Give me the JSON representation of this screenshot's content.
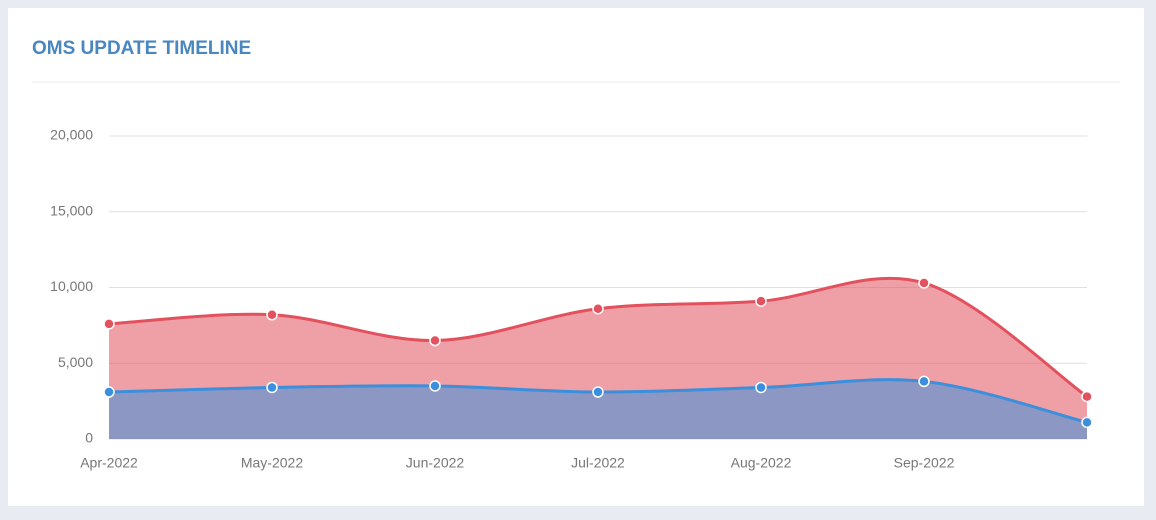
{
  "chart_data": {
    "type": "area",
    "title": "OMS UPDATE TIMELINE",
    "categories": [
      "Apr-2022",
      "May-2022",
      "Jun-2022",
      "Jul-2022",
      "Aug-2022",
      "Sep-2022",
      null
    ],
    "series": [
      {
        "color": "#e2515d",
        "values": [
          7600,
          8200,
          6500,
          8600,
          9100,
          10300,
          2800
        ]
      },
      {
        "color": "#3b8fdc",
        "values": [
          3100,
          3400,
          3500,
          3100,
          3400,
          3800,
          1100
        ]
      }
    ],
    "ylim": [
      0,
      20000
    ],
    "yticks": [
      0,
      {
        "value": 5000,
        "label": "5,000"
      },
      {
        "value": 10000,
        "label": "10,000"
      },
      {
        "value": 15000,
        "label": "15,000"
      },
      {
        "value": 20000,
        "label": "20,000"
      }
    ],
    "grid": true
  }
}
